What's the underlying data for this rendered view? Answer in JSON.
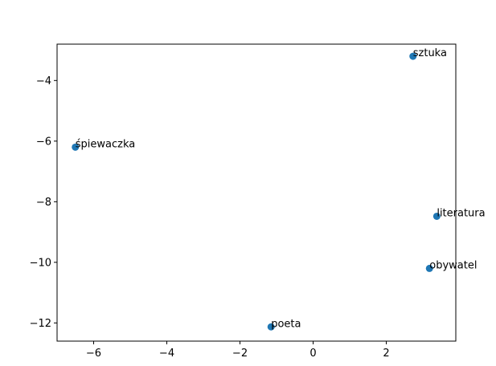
{
  "chart_data": {
    "type": "scatter",
    "title": "",
    "xlabel": "",
    "ylabel": "",
    "xlim": [
      -7.0,
      3.9
    ],
    "ylim": [
      -12.6,
      -2.8
    ],
    "xticks": [
      -6,
      -4,
      -2,
      0,
      2
    ],
    "yticks": [
      -12,
      -10,
      -8,
      -6,
      -4
    ],
    "xtick_labels": [
      "−6",
      "−4",
      "−2",
      "0",
      "2"
    ],
    "ytick_labels": [
      "−12",
      "−10",
      "−8",
      "−6",
      "−4"
    ],
    "grid": false,
    "legend": "none",
    "marker_color": "#1f77b4",
    "points": [
      {
        "label": "sztuka",
        "x": 2.73,
        "y": -3.2
      },
      {
        "label": "śpiewaczka",
        "x": -6.5,
        "y": -6.2
      },
      {
        "label": "literatura",
        "x": 3.38,
        "y": -8.48
      },
      {
        "label": "obywatel",
        "x": 3.18,
        "y": -10.2
      },
      {
        "label": "poeta",
        "x": -1.15,
        "y": -12.13
      }
    ]
  }
}
